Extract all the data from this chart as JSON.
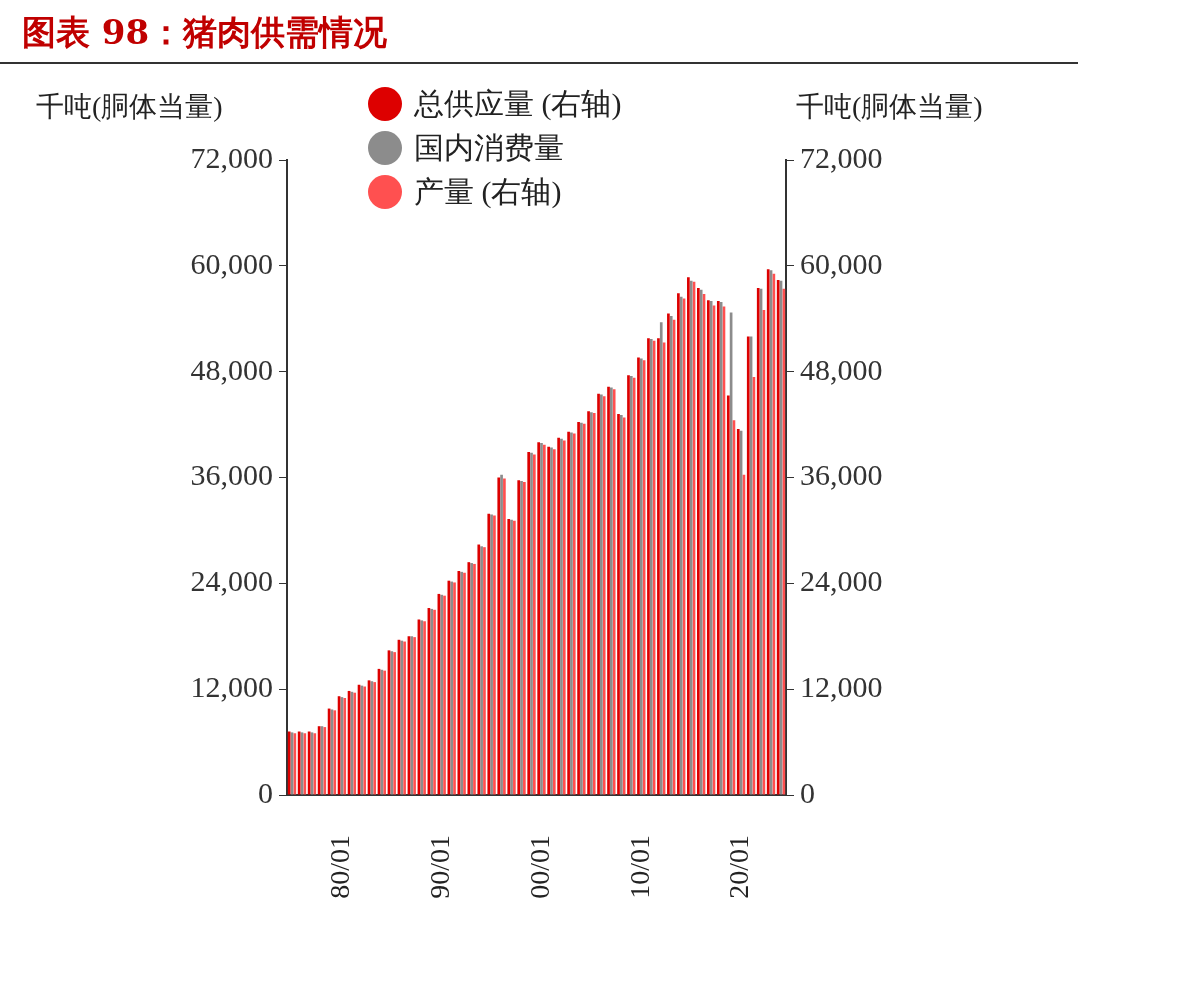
{
  "chart_data": {
    "type": "bar",
    "title": "图表 98：猪肉供需情况",
    "ylabel": "千吨(胴体当量)",
    "y2label": "千吨(胴体当量)",
    "categories": [
      null,
      null,
      null,
      null,
      null,
      "80/01",
      null,
      null,
      null,
      null,
      null,
      null,
      null,
      null,
      null,
      "90/01",
      null,
      null,
      null,
      null,
      null,
      null,
      null,
      null,
      null,
      "00/01",
      null,
      null,
      null,
      null,
      null,
      null,
      null,
      null,
      null,
      "10/01",
      null,
      null,
      null,
      null,
      null,
      null,
      null,
      null,
      null,
      "20/01",
      null,
      null,
      null,
      null
    ],
    "series": [
      {
        "name": "总供应量 (右轴)",
        "color": "#dd0000",
        "values": [
          7200,
          7200,
          7200,
          7800,
          9800,
          11200,
          11800,
          12500,
          13000,
          14300,
          16400,
          17600,
          18000,
          19900,
          21200,
          22800,
          24300,
          25400,
          26400,
          28400,
          31900,
          36000,
          31300,
          35700,
          38900,
          40000,
          39500,
          40500,
          41200,
          42300,
          43500,
          45500,
          46300,
          43200,
          47600,
          49600,
          51800,
          51800,
          54600,
          56900,
          58700,
          57500,
          56100,
          56000,
          45300,
          41500,
          52000,
          57500,
          59600,
          58400
        ]
      },
      {
        "name": "国内消费量",
        "color": "#8c8c8c",
        "values": [
          7100,
          7100,
          7100,
          7800,
          9700,
          11100,
          11700,
          12400,
          12900,
          14200,
          16300,
          17500,
          18000,
          19800,
          21100,
          22700,
          24200,
          25300,
          26300,
          28200,
          31800,
          36300,
          31200,
          35600,
          38800,
          39900,
          39400,
          40400,
          41100,
          42200,
          43400,
          45400,
          46200,
          43100,
          47500,
          49500,
          51700,
          53600,
          54300,
          56500,
          58300,
          57300,
          56000,
          55900,
          54700,
          41300,
          52000,
          57400,
          59500,
          58300
        ]
      },
      {
        "name": "产量 (右轴)",
        "color": "#ff5050",
        "values": [
          7000,
          7000,
          7000,
          7700,
          9600,
          11000,
          11600,
          12300,
          12800,
          14100,
          16200,
          17400,
          17900,
          19700,
          21000,
          22600,
          24100,
          25200,
          26200,
          28100,
          31700,
          35900,
          31100,
          35500,
          38600,
          39700,
          39200,
          40200,
          41000,
          42100,
          43300,
          45200,
          46000,
          42800,
          47300,
          49300,
          51500,
          51300,
          53900,
          56300,
          58200,
          56800,
          55500,
          55400,
          42500,
          36300,
          47400,
          55000,
          59100,
          57400
        ]
      }
    ],
    "ylim": [
      0,
      72000
    ],
    "yticks": [
      0,
      {
        "value": 12000,
        "label": "12,000"
      },
      {
        "value": 24000,
        "label": "24,000"
      },
      {
        "value": 36000,
        "label": "36,000"
      },
      {
        "value": 48000,
        "label": "48,000"
      },
      {
        "value": 60000,
        "label": "60,000"
      },
      {
        "value": 72000,
        "label": "72,000"
      }
    ],
    "y2lim": [
      0,
      72000
    ],
    "y2ticks": [
      0,
      {
        "value": 12000,
        "label": "12,000"
      },
      {
        "value": 24000,
        "label": "24,000"
      },
      {
        "value": 36000,
        "label": "36,000"
      },
      {
        "value": 48000,
        "label": "48,000"
      },
      {
        "value": 60000,
        "label": "60,000"
      },
      {
        "value": 72000,
        "label": "72,000"
      }
    ],
    "grid": false,
    "legend": "top"
  }
}
